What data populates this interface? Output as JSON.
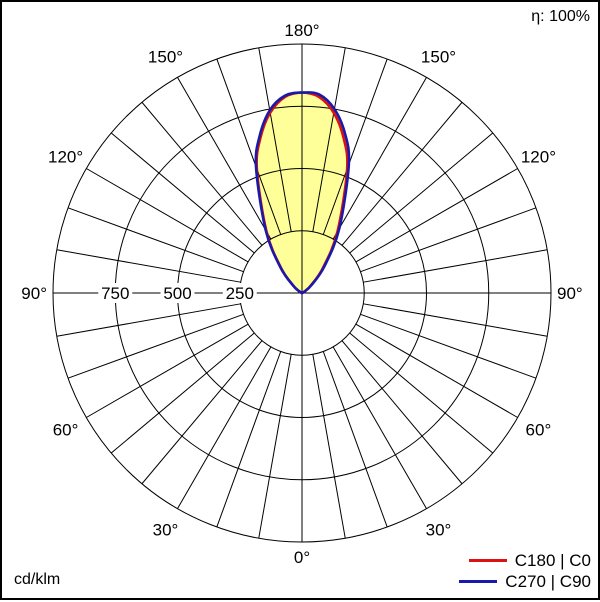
{
  "header": {
    "efficiency_label": "η: 100%"
  },
  "footer": {
    "units_label": "cd/klm"
  },
  "colors": {
    "fill": "#ffff99",
    "grid": "#000000"
  },
  "chart_data": {
    "type": "polar",
    "title": "",
    "units": "cd/klm",
    "efficiency": "η: 100%",
    "radial_ticks": [
      250,
      500,
      750
    ],
    "radial_tick_labels": [
      "250",
      "500",
      "750"
    ],
    "r_max": 1000,
    "angle_labels": [
      {
        "text": "180°",
        "angle": 180,
        "side": "top"
      },
      {
        "text": "150°",
        "angle": 150,
        "side": "left"
      },
      {
        "text": "150°",
        "angle": 150,
        "side": "right"
      },
      {
        "text": "120°",
        "angle": 120,
        "side": "left"
      },
      {
        "text": "120°",
        "angle": 120,
        "side": "right"
      },
      {
        "text": "90°",
        "angle": 90,
        "side": "left"
      },
      {
        "text": "90°",
        "angle": 90,
        "side": "right"
      },
      {
        "text": "60°",
        "angle": 60,
        "side": "left"
      },
      {
        "text": "60°",
        "angle": 60,
        "side": "right"
      },
      {
        "text": "30°",
        "angle": 30,
        "side": "left"
      },
      {
        "text": "30°",
        "angle": 30,
        "side": "right"
      },
      {
        "text": "0°",
        "angle": 0,
        "side": "bottom"
      }
    ],
    "series": [
      {
        "name": "C180 | C0",
        "color": "#dd1111",
        "angles": [
          90,
          100,
          110,
          120,
          130,
          140,
          150,
          160,
          165,
          170,
          175,
          180
        ],
        "left_values": [
          0,
          0,
          0,
          10,
          45,
          130,
          285,
          530,
          645,
          735,
          790,
          805
        ],
        "right_values": [
          0,
          0,
          0,
          10,
          45,
          130,
          285,
          530,
          645,
          735,
          790,
          805
        ]
      },
      {
        "name": "C270 | C90",
        "color": "#1a1aaa",
        "angles": [
          90,
          100,
          110,
          120,
          130,
          140,
          150,
          160,
          165,
          170,
          175,
          180
        ],
        "left_values": [
          0,
          0,
          0,
          10,
          46,
          135,
          292,
          540,
          655,
          745,
          795,
          805
        ],
        "right_values": [
          0,
          0,
          0,
          12,
          50,
          140,
          300,
          550,
          665,
          750,
          800,
          805
        ]
      }
    ],
    "legend_position": "bottom-right",
    "grid": true
  }
}
